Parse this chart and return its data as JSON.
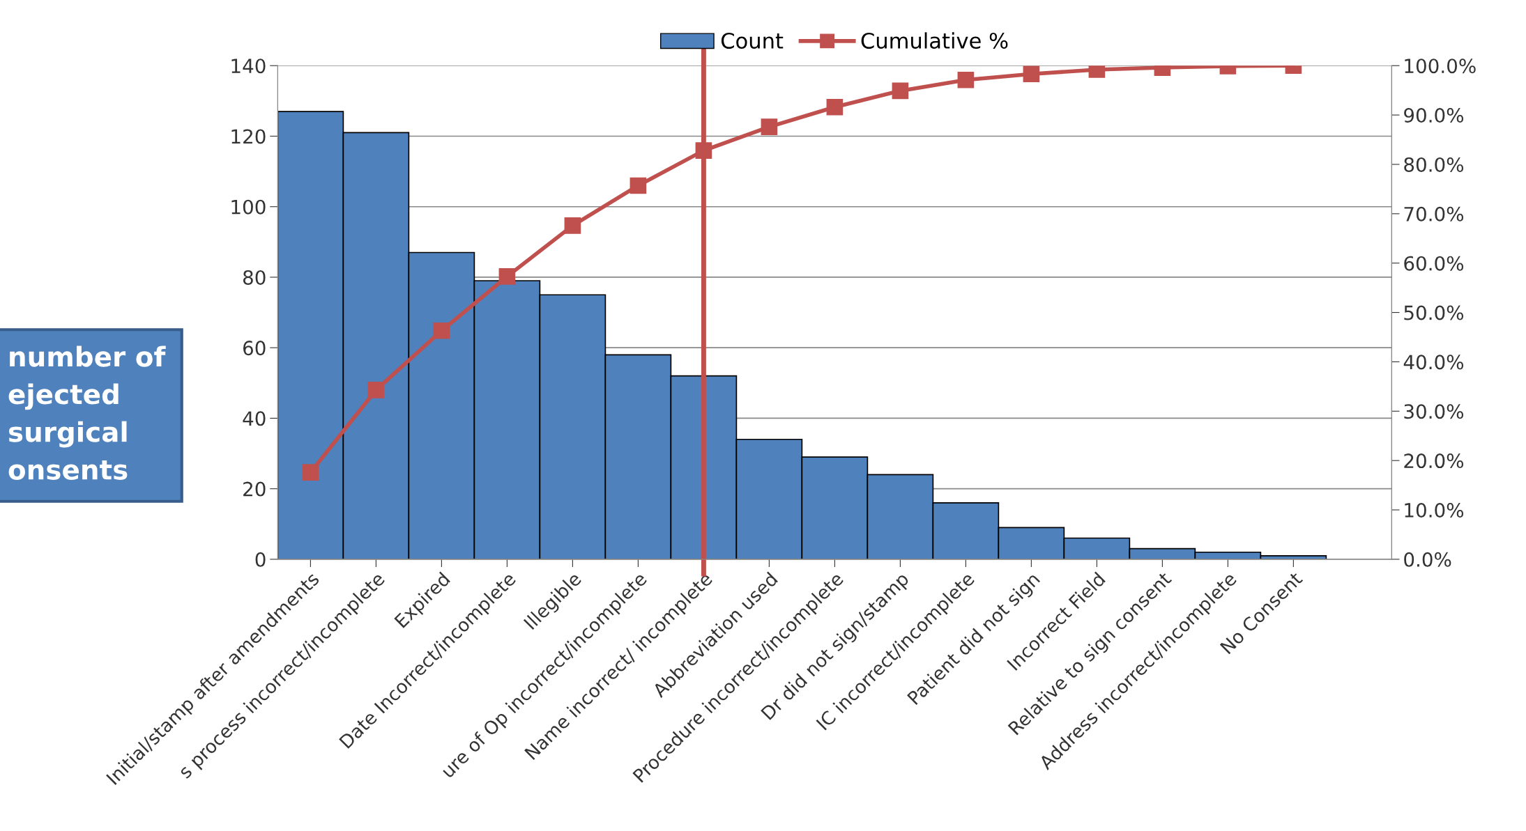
{
  "chart_data": {
    "type": "bar",
    "categories": [
      "Initial/stamp after amendments",
      "s process incorrect/incomplete",
      "Expired",
      "Date Incorrect/incomplete",
      "Illegible",
      "ure of Op incorrect/incomplete",
      "Name incorrect/ incomplete",
      "Abbreviation used",
      "Procedure incorrect/incomplete",
      "Dr did not sign/stamp",
      "IC incorrect/incomplete",
      "Patient did not sign",
      "Incorrect Field",
      "Relative to sign consent",
      "Address incorrect/incomplete",
      "No Consent"
    ],
    "series": [
      {
        "name": "Count",
        "color": "#4f81bd",
        "values": [
          127,
          121,
          87,
          79,
          75,
          58,
          52,
          34,
          29,
          24,
          16,
          9,
          6,
          3,
          2,
          1
        ]
      },
      {
        "name": "Cumulative %",
        "type": "line",
        "axis": "y2",
        "color": "#c0504d",
        "marker": "square",
        "values": [
          17.6,
          34.3,
          46.3,
          57.3,
          67.6,
          75.7,
          82.8,
          87.6,
          91.6,
          94.9,
          97.1,
          98.3,
          99.2,
          99.6,
          99.9,
          100
        ]
      }
    ],
    "ylim": [
      0,
      140
    ],
    "yticks": [
      0,
      20,
      40,
      60,
      80,
      100,
      120,
      140
    ],
    "y2lim": [
      0,
      100
    ],
    "y2ticks": [
      {
        "value": 0,
        "label": "0.0%"
      },
      {
        "value": 10,
        "label": "10.0%"
      },
      {
        "value": 20,
        "label": "20.0%"
      },
      {
        "value": 30,
        "label": "30.0%"
      },
      {
        "value": 40,
        "label": "40.0%"
      },
      {
        "value": 50,
        "label": "50.0%"
      },
      {
        "value": 60,
        "label": "60.0%"
      },
      {
        "value": 70,
        "label": "70.0%"
      },
      {
        "value": 80,
        "label": "80.0%"
      },
      {
        "value": 90,
        "label": "90.0%"
      },
      {
        "value": 100,
        "label": "100.0%"
      }
    ],
    "ref_lines": [
      {
        "axis": "x",
        "value": "Name incorrect/ incomplete",
        "color": "#c0504d"
      }
    ],
    "annotations": [
      "number of\nejected\nsurgical\nonsents"
    ],
    "grid": "y",
    "legend": "top"
  }
}
